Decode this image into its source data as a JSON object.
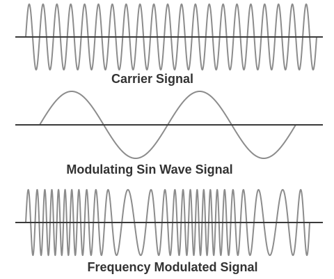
{
  "labels": {
    "carrier": "Carrier Signal",
    "modulating": "Modulating Sin Wave Signal",
    "fm": "Frequency Modulated Signal"
  },
  "colors": {
    "wave": "#8c8c8c",
    "axis": "#3a3a3a",
    "text": "#333333",
    "background": "#ffffff"
  },
  "signals": {
    "carrier_cycles": 21,
    "modulating_cycles": 2,
    "fm_cycles": 27
  }
}
